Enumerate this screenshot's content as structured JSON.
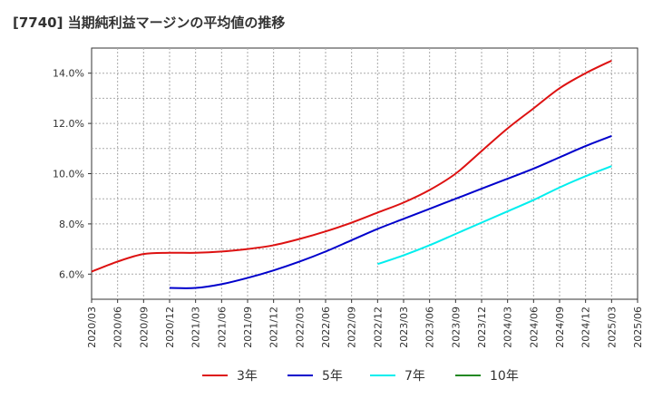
{
  "chart_data": {
    "type": "line",
    "title": "[7740]  当期純利益マージンの平均値の推移",
    "xlabel": "",
    "ylabel": "",
    "x": [
      "2020/03",
      "2020/06",
      "2020/09",
      "2020/12",
      "2021/03",
      "2021/06",
      "2021/09",
      "2021/12",
      "2022/03",
      "2022/06",
      "2022/09",
      "2022/12",
      "2023/03",
      "2023/06",
      "2023/09",
      "2023/12",
      "2024/03",
      "2024/06",
      "2024/09",
      "2024/12",
      "2025/03",
      "2025/06"
    ],
    "ylim": [
      5.0,
      15.0
    ],
    "yticks": [
      6.0,
      8.0,
      10.0,
      12.0,
      14.0
    ],
    "ytick_labels": [
      "6.0%",
      "8.0%",
      "10.0%",
      "12.0%",
      "14.0%"
    ],
    "grid": true,
    "legend_position": "bottom",
    "series": [
      {
        "name": "3年",
        "color": "#dd1111",
        "values": [
          6.1,
          6.5,
          6.8,
          6.85,
          6.85,
          6.9,
          7.0,
          7.15,
          7.4,
          7.7,
          8.05,
          8.45,
          8.85,
          9.35,
          10.0,
          10.9,
          11.8,
          12.6,
          13.4,
          14.0,
          14.5,
          null
        ]
      },
      {
        "name": "5年",
        "color": "#0000cc",
        "values": [
          null,
          null,
          null,
          5.45,
          5.45,
          5.6,
          5.85,
          6.15,
          6.5,
          6.9,
          7.35,
          7.8,
          8.2,
          8.6,
          9.0,
          9.4,
          9.8,
          10.2,
          10.65,
          11.1,
          11.5,
          null
        ]
      },
      {
        "name": "7年",
        "color": "#00eeee",
        "values": [
          null,
          null,
          null,
          null,
          null,
          null,
          null,
          null,
          null,
          null,
          null,
          6.4,
          6.75,
          7.15,
          7.6,
          8.05,
          8.5,
          8.95,
          9.45,
          9.9,
          10.3,
          null
        ]
      },
      {
        "name": "10年",
        "color": "#228822",
        "values": [
          null,
          null,
          null,
          null,
          null,
          null,
          null,
          null,
          null,
          null,
          null,
          null,
          null,
          null,
          null,
          null,
          null,
          null,
          null,
          null,
          null,
          null
        ]
      }
    ]
  }
}
